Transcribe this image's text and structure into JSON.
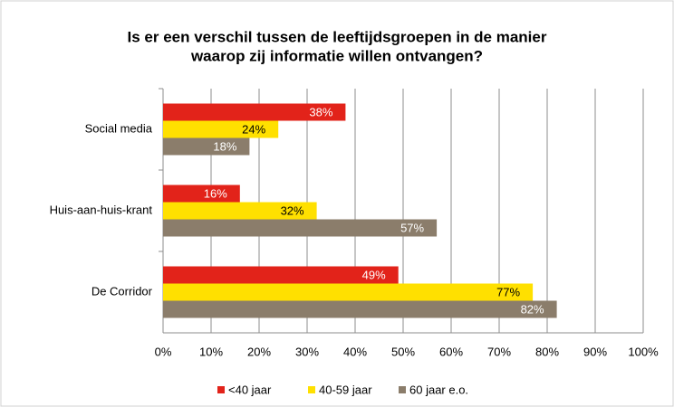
{
  "chart_data": {
    "type": "hbar",
    "title": [
      "Is er een verschil tussen  de leeftijdsgroepen in de manier",
      "waarop zij informatie willen ontvangen?"
    ],
    "categories": [
      "Social media",
      "Huis-aan-huis-krant",
      "De Corridor"
    ],
    "series": [
      {
        "name": "<40 jaar",
        "color": "#e2231a",
        "values": [
          38,
          16,
          49
        ],
        "value_labels": [
          "38%",
          "16%",
          "49%"
        ]
      },
      {
        "name": "40-59 jaar",
        "color": "#ffe000",
        "values": [
          24,
          32,
          77
        ],
        "value_labels": [
          "24%",
          "32%",
          "77%"
        ]
      },
      {
        "name": "60 jaar e.o.",
        "color": "#8b7d6b",
        "values": [
          18,
          57,
          82
        ],
        "value_labels": [
          "18%",
          "57%",
          "82%"
        ]
      }
    ],
    "xlim": [
      0,
      100
    ],
    "xticks": [
      {
        "value": 0,
        "label": "0%"
      },
      {
        "value": 10,
        "label": "10%"
      },
      {
        "value": 20,
        "label": "20%"
      },
      {
        "value": 30,
        "label": "30%"
      },
      {
        "value": 40,
        "label": "40%"
      },
      {
        "value": 50,
        "label": "50%"
      },
      {
        "value": 60,
        "label": "60%"
      },
      {
        "value": 70,
        "label": "70%"
      },
      {
        "value": 80,
        "label": "80%"
      },
      {
        "value": 90,
        "label": "90%"
      },
      {
        "value": 100,
        "label": "100%"
      }
    ],
    "grid": true,
    "legend": "bottom"
  }
}
